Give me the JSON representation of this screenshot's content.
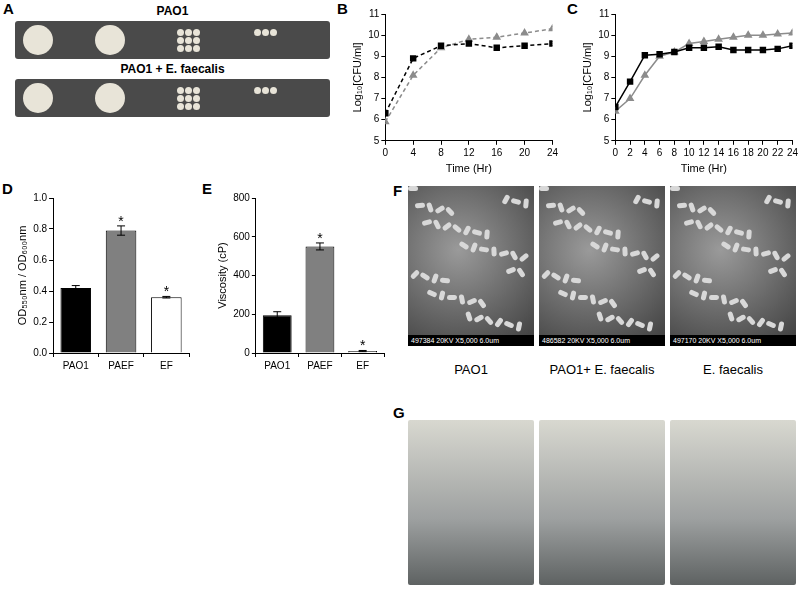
{
  "panel_a": {
    "panel": "A",
    "rows": [
      "PAO1",
      "PAO1 + E. faecalis"
    ]
  },
  "chart_data": [
    {
      "panel": "B",
      "type": "line",
      "x_label": "Time (Hr)",
      "y_label": "Log₁₀[CFU/ml]",
      "x": [
        0,
        4,
        8,
        12,
        16,
        20,
        24
      ],
      "xlim": [
        0,
        24
      ],
      "xticks": [
        0,
        4,
        8,
        12,
        16,
        20,
        24
      ],
      "ylim": [
        5,
        11
      ],
      "yticks": [
        5,
        6,
        7,
        8,
        9,
        10,
        11
      ],
      "grid": false,
      "series": [
        {
          "color": "#000000",
          "marker": "square",
          "line_style": "dashed",
          "values": [
            6.3,
            8.9,
            9.5,
            9.6,
            9.4,
            9.5,
            9.6
          ]
        },
        {
          "color": "#8c8c8c",
          "marker": "triangle",
          "line_style": "dashed",
          "values": [
            5.9,
            8.1,
            9.4,
            9.8,
            9.9,
            10.1,
            10.3
          ]
        }
      ]
    },
    {
      "panel": "C",
      "type": "line",
      "x_label": "Time (Hr)",
      "y_label": "Log₁₀[CFU/ml]",
      "x": [
        0,
        2,
        4,
        6,
        8,
        10,
        12,
        14,
        16,
        18,
        20,
        22,
        24
      ],
      "xlim": [
        0,
        24
      ],
      "xticks": [
        0,
        2,
        4,
        6,
        8,
        10,
        12,
        14,
        16,
        18,
        20,
        22,
        24
      ],
      "ylim": [
        5,
        11
      ],
      "yticks": [
        5,
        6,
        7,
        8,
        9,
        10,
        11
      ],
      "grid": false,
      "series": [
        {
          "color": "#000000",
          "marker": "square",
          "line_style": "solid",
          "values": [
            6.6,
            7.8,
            9.05,
            9.1,
            9.2,
            9.4,
            9.4,
            9.45,
            9.3,
            9.3,
            9.3,
            9.35,
            9.5
          ]
        },
        {
          "color": "#8c8c8c",
          "marker": "triangle",
          "line_style": "solid",
          "values": [
            6.4,
            7.0,
            8.1,
            9.0,
            9.2,
            9.6,
            9.7,
            9.8,
            9.9,
            10.0,
            10.0,
            10.05,
            10.1
          ]
        }
      ]
    },
    {
      "panel": "D",
      "type": "bar",
      "y_label": "OD₅₅₀nm / OD₆₀₀nm",
      "categories": [
        "PAO1",
        "PAEF",
        "EF"
      ],
      "values": [
        0.42,
        0.79,
        0.36
      ],
      "errors": [
        0.015,
        0.03,
        0.005
      ],
      "colors": [
        "#000000",
        "#808080",
        "#ffffff"
      ],
      "significance": [
        null,
        "*",
        "*"
      ],
      "ylim": [
        0,
        1
      ],
      "yticks": [
        {
          "value": 0,
          "label": "0.0"
        },
        0.2,
        0.4,
        0.6,
        0.8,
        {
          "value": 1,
          "label": "1.0"
        }
      ],
      "grid": false
    },
    {
      "panel": "E",
      "type": "bar",
      "y_label": "Viscosity (cP)",
      "categories": [
        "PAO1",
        "PAEF",
        "EF"
      ],
      "values": [
        195,
        550,
        10
      ],
      "errors": [
        18,
        18,
        3
      ],
      "colors": [
        "#000000",
        "#808080",
        "#ffffff"
      ],
      "significance": [
        null,
        "*",
        "*"
      ],
      "ylim": [
        0,
        800
      ],
      "yticks": [
        0,
        200,
        400,
        600,
        800
      ],
      "grid": false
    }
  ],
  "panel_f": {
    "panel": "F",
    "images": [
      {
        "caption": "497384 20KV X5,000 6.0um",
        "label": "PAO1"
      },
      {
        "caption": "486582 20KV X5,000 6.0um",
        "label": "PAO1+ E. faecalis"
      },
      {
        "caption": "497170 20KV X5,000 6.0um",
        "label": "E. faecalis"
      }
    ]
  },
  "panel_g": {
    "panel": "G"
  }
}
